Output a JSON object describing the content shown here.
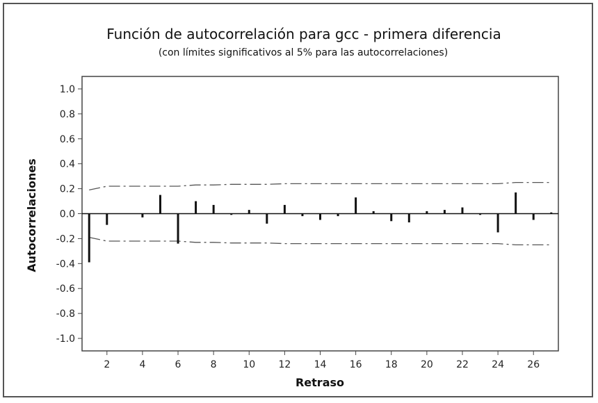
{
  "chart_data": {
    "type": "bar",
    "title": "Función de autocorrelación para gcc - primera diferencia",
    "subtitle": "(con límites significativos al 5% para las autocorrelaciones)",
    "xlabel": "Retraso",
    "ylabel": "Autocorrelaciones",
    "xlim": [
      0.6,
      27.4
    ],
    "ylim": [
      -1.1,
      1.1
    ],
    "x_ticks": [
      2,
      4,
      6,
      8,
      10,
      12,
      14,
      16,
      18,
      20,
      22,
      24,
      26
    ],
    "y_ticks": [
      1.0,
      0.8,
      0.6,
      0.4,
      0.2,
      0.0,
      -0.2,
      -0.4,
      -0.6,
      -0.8,
      -1.0
    ],
    "y_tick_labels": [
      "1.0",
      "0.8",
      "0.6",
      "0.4",
      "0.2",
      "0.0",
      "-0.2",
      "-0.4",
      "-0.6",
      "-0.8",
      "-1.0"
    ],
    "x": [
      1,
      2,
      3,
      4,
      5,
      6,
      7,
      8,
      9,
      10,
      11,
      12,
      13,
      14,
      15,
      16,
      17,
      18,
      19,
      20,
      21,
      22,
      23,
      24,
      25,
      26,
      27
    ],
    "values": [
      -0.39,
      -0.09,
      0.0,
      -0.03,
      0.15,
      -0.24,
      0.1,
      0.07,
      -0.01,
      0.03,
      -0.08,
      0.07,
      -0.02,
      -0.05,
      -0.02,
      0.13,
      0.02,
      -0.06,
      -0.07,
      0.02,
      0.03,
      0.05,
      -0.01,
      -0.15,
      0.17,
      -0.05,
      0.01
    ],
    "significance_limits": {
      "x": [
        1,
        2,
        3,
        4,
        5,
        6,
        7,
        8,
        9,
        10,
        11,
        12,
        13,
        14,
        15,
        16,
        17,
        18,
        19,
        20,
        21,
        22,
        23,
        24,
        25,
        26,
        27
      ],
      "upper": [
        0.19,
        0.22,
        0.22,
        0.22,
        0.22,
        0.22,
        0.23,
        0.23,
        0.235,
        0.235,
        0.235,
        0.24,
        0.24,
        0.24,
        0.24,
        0.24,
        0.24,
        0.24,
        0.24,
        0.24,
        0.24,
        0.24,
        0.24,
        0.24,
        0.25,
        0.25,
        0.25
      ],
      "lower": [
        -0.19,
        -0.22,
        -0.22,
        -0.22,
        -0.22,
        -0.22,
        -0.23,
        -0.23,
        -0.235,
        -0.235,
        -0.235,
        -0.24,
        -0.24,
        -0.24,
        -0.24,
        -0.24,
        -0.24,
        -0.24,
        -0.24,
        -0.24,
        -0.24,
        -0.24,
        -0.24,
        -0.24,
        -0.25,
        -0.25,
        -0.25
      ]
    },
    "grid": false,
    "colors": {
      "bars": "#111111",
      "limits": "#555555",
      "axes": "#444444"
    }
  }
}
